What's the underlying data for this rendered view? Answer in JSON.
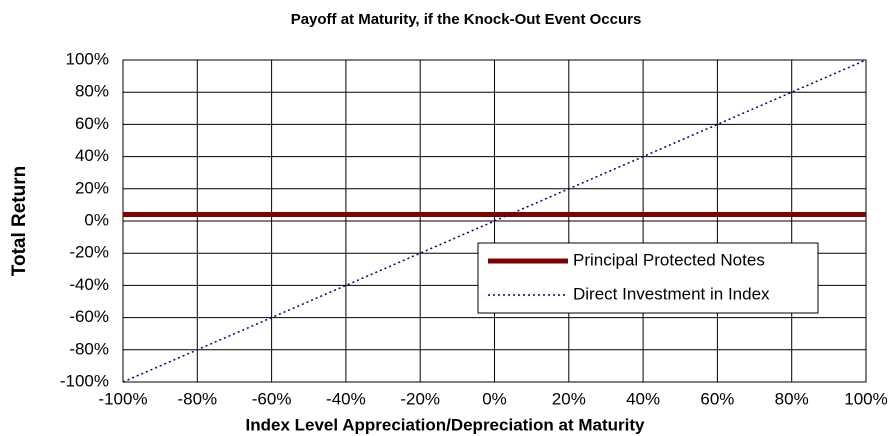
{
  "chart_data": {
    "type": "line",
    "title": "Payoff at Maturity, if the Knock-Out Event Occurs",
    "x_label": "Index Level Appreciation/Depreciation at Maturity",
    "y_label": "Total Return",
    "x": [
      -100,
      100
    ],
    "series": [
      {
        "name": "Principal Protected Notes",
        "color": "#800000",
        "style": "solid",
        "values": [
          4,
          4
        ]
      },
      {
        "name": "Direct Investment in Index",
        "color": "#000080",
        "style": "dotted",
        "values": [
          -100,
          100
        ]
      }
    ],
    "xlim": [
      -100,
      100
    ],
    "xticks": [
      {
        "value": -100,
        "label": "-100%"
      },
      {
        "value": -80,
        "label": "-80%"
      },
      {
        "value": -60,
        "label": "-60%"
      },
      {
        "value": -40,
        "label": "-40%"
      },
      {
        "value": -20,
        "label": "-20%"
      },
      {
        "value": 0,
        "label": "0%"
      },
      {
        "value": 20,
        "label": "20%"
      },
      {
        "value": 40,
        "label": "40%"
      },
      {
        "value": 60,
        "label": "60%"
      },
      {
        "value": 80,
        "label": "80%"
      },
      {
        "value": 100,
        "label": "100%"
      }
    ],
    "ylim": [
      -100,
      100
    ],
    "yticks": [
      {
        "value": -100,
        "label": "-100%"
      },
      {
        "value": -80,
        "label": "-80%"
      },
      {
        "value": -60,
        "label": "-60%"
      },
      {
        "value": -40,
        "label": "-40%"
      },
      {
        "value": -20,
        "label": "-20%"
      },
      {
        "value": 0,
        "label": "0%"
      },
      {
        "value": 20,
        "label": "20%"
      },
      {
        "value": 40,
        "label": "40%"
      },
      {
        "value": 60,
        "label": "60%"
      },
      {
        "value": 80,
        "label": "80%"
      },
      {
        "value": 100,
        "label": "100%"
      }
    ],
    "grid": true,
    "legend": "lower right"
  }
}
